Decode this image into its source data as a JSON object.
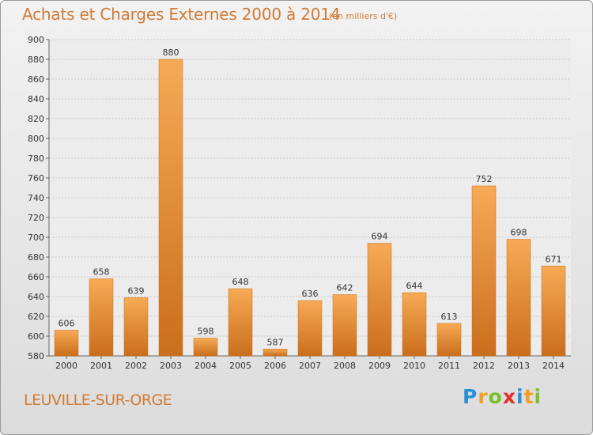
{
  "header": {
    "title": "Achats et Charges Externes 2000 à 2014",
    "unit": "(en milliers d'€)"
  },
  "commune": "LEUVILLE-SUR-ORGE",
  "logo": {
    "text": "Proxiti",
    "letters": [
      "P",
      "r",
      "o",
      "x",
      "i",
      "t",
      "i"
    ],
    "colors": [
      "#2a8fd6",
      "#f0a023",
      "#7bbf2a",
      "#e0302a",
      "#2a8fd6",
      "#f0a023",
      "#7bbf2a"
    ]
  },
  "chart_data": {
    "type": "bar",
    "title": "Achats et Charges Externes 2000 à 2014",
    "subtitle": "(en milliers d'€)",
    "categories": [
      "2000",
      "2001",
      "2002",
      "2003",
      "2004",
      "2005",
      "2006",
      "2007",
      "2008",
      "2009",
      "2010",
      "2011",
      "2012",
      "2013",
      "2014"
    ],
    "values": [
      606,
      658,
      639,
      880,
      598,
      648,
      587,
      636,
      642,
      694,
      644,
      613,
      752,
      698,
      671
    ],
    "ylim": [
      580,
      900
    ],
    "ytick_step": 20,
    "grid": true,
    "bar_color": "#f0922e",
    "bar_color_light": "#f7aa55",
    "bar_color_dark": "#c96e1c"
  }
}
